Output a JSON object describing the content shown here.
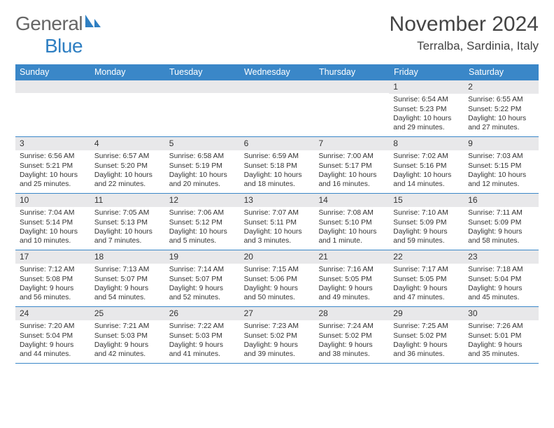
{
  "brand": {
    "part1": "General",
    "part2": "Blue"
  },
  "title": {
    "month_year": "November 2024",
    "location": "Terralba, Sardinia, Italy"
  },
  "colors": {
    "accent": "#3a87c8",
    "band": "#e8e8ea",
    "text": "#333333"
  },
  "days_of_week": [
    "Sunday",
    "Monday",
    "Tuesday",
    "Wednesday",
    "Thursday",
    "Friday",
    "Saturday"
  ],
  "weeks": [
    [
      {
        "blank": true
      },
      {
        "blank": true
      },
      {
        "blank": true
      },
      {
        "blank": true
      },
      {
        "blank": true
      },
      {
        "n": "1",
        "sr": "Sunrise: 6:54 AM",
        "ss": "Sunset: 5:23 PM",
        "dl1": "Daylight: 10 hours",
        "dl2": "and 29 minutes."
      },
      {
        "n": "2",
        "sr": "Sunrise: 6:55 AM",
        "ss": "Sunset: 5:22 PM",
        "dl1": "Daylight: 10 hours",
        "dl2": "and 27 minutes."
      }
    ],
    [
      {
        "n": "3",
        "sr": "Sunrise: 6:56 AM",
        "ss": "Sunset: 5:21 PM",
        "dl1": "Daylight: 10 hours",
        "dl2": "and 25 minutes."
      },
      {
        "n": "4",
        "sr": "Sunrise: 6:57 AM",
        "ss": "Sunset: 5:20 PM",
        "dl1": "Daylight: 10 hours",
        "dl2": "and 22 minutes."
      },
      {
        "n": "5",
        "sr": "Sunrise: 6:58 AM",
        "ss": "Sunset: 5:19 PM",
        "dl1": "Daylight: 10 hours",
        "dl2": "and 20 minutes."
      },
      {
        "n": "6",
        "sr": "Sunrise: 6:59 AM",
        "ss": "Sunset: 5:18 PM",
        "dl1": "Daylight: 10 hours",
        "dl2": "and 18 minutes."
      },
      {
        "n": "7",
        "sr": "Sunrise: 7:00 AM",
        "ss": "Sunset: 5:17 PM",
        "dl1": "Daylight: 10 hours",
        "dl2": "and 16 minutes."
      },
      {
        "n": "8",
        "sr": "Sunrise: 7:02 AM",
        "ss": "Sunset: 5:16 PM",
        "dl1": "Daylight: 10 hours",
        "dl2": "and 14 minutes."
      },
      {
        "n": "9",
        "sr": "Sunrise: 7:03 AM",
        "ss": "Sunset: 5:15 PM",
        "dl1": "Daylight: 10 hours",
        "dl2": "and 12 minutes."
      }
    ],
    [
      {
        "n": "10",
        "sr": "Sunrise: 7:04 AM",
        "ss": "Sunset: 5:14 PM",
        "dl1": "Daylight: 10 hours",
        "dl2": "and 10 minutes."
      },
      {
        "n": "11",
        "sr": "Sunrise: 7:05 AM",
        "ss": "Sunset: 5:13 PM",
        "dl1": "Daylight: 10 hours",
        "dl2": "and 7 minutes."
      },
      {
        "n": "12",
        "sr": "Sunrise: 7:06 AM",
        "ss": "Sunset: 5:12 PM",
        "dl1": "Daylight: 10 hours",
        "dl2": "and 5 minutes."
      },
      {
        "n": "13",
        "sr": "Sunrise: 7:07 AM",
        "ss": "Sunset: 5:11 PM",
        "dl1": "Daylight: 10 hours",
        "dl2": "and 3 minutes."
      },
      {
        "n": "14",
        "sr": "Sunrise: 7:08 AM",
        "ss": "Sunset: 5:10 PM",
        "dl1": "Daylight: 10 hours",
        "dl2": "and 1 minute."
      },
      {
        "n": "15",
        "sr": "Sunrise: 7:10 AM",
        "ss": "Sunset: 5:09 PM",
        "dl1": "Daylight: 9 hours",
        "dl2": "and 59 minutes."
      },
      {
        "n": "16",
        "sr": "Sunrise: 7:11 AM",
        "ss": "Sunset: 5:09 PM",
        "dl1": "Daylight: 9 hours",
        "dl2": "and 58 minutes."
      }
    ],
    [
      {
        "n": "17",
        "sr": "Sunrise: 7:12 AM",
        "ss": "Sunset: 5:08 PM",
        "dl1": "Daylight: 9 hours",
        "dl2": "and 56 minutes."
      },
      {
        "n": "18",
        "sr": "Sunrise: 7:13 AM",
        "ss": "Sunset: 5:07 PM",
        "dl1": "Daylight: 9 hours",
        "dl2": "and 54 minutes."
      },
      {
        "n": "19",
        "sr": "Sunrise: 7:14 AM",
        "ss": "Sunset: 5:07 PM",
        "dl1": "Daylight: 9 hours",
        "dl2": "and 52 minutes."
      },
      {
        "n": "20",
        "sr": "Sunrise: 7:15 AM",
        "ss": "Sunset: 5:06 PM",
        "dl1": "Daylight: 9 hours",
        "dl2": "and 50 minutes."
      },
      {
        "n": "21",
        "sr": "Sunrise: 7:16 AM",
        "ss": "Sunset: 5:05 PM",
        "dl1": "Daylight: 9 hours",
        "dl2": "and 49 minutes."
      },
      {
        "n": "22",
        "sr": "Sunrise: 7:17 AM",
        "ss": "Sunset: 5:05 PM",
        "dl1": "Daylight: 9 hours",
        "dl2": "and 47 minutes."
      },
      {
        "n": "23",
        "sr": "Sunrise: 7:18 AM",
        "ss": "Sunset: 5:04 PM",
        "dl1": "Daylight: 9 hours",
        "dl2": "and 45 minutes."
      }
    ],
    [
      {
        "n": "24",
        "sr": "Sunrise: 7:20 AM",
        "ss": "Sunset: 5:04 PM",
        "dl1": "Daylight: 9 hours",
        "dl2": "and 44 minutes."
      },
      {
        "n": "25",
        "sr": "Sunrise: 7:21 AM",
        "ss": "Sunset: 5:03 PM",
        "dl1": "Daylight: 9 hours",
        "dl2": "and 42 minutes."
      },
      {
        "n": "26",
        "sr": "Sunrise: 7:22 AM",
        "ss": "Sunset: 5:03 PM",
        "dl1": "Daylight: 9 hours",
        "dl2": "and 41 minutes."
      },
      {
        "n": "27",
        "sr": "Sunrise: 7:23 AM",
        "ss": "Sunset: 5:02 PM",
        "dl1": "Daylight: 9 hours",
        "dl2": "and 39 minutes."
      },
      {
        "n": "28",
        "sr": "Sunrise: 7:24 AM",
        "ss": "Sunset: 5:02 PM",
        "dl1": "Daylight: 9 hours",
        "dl2": "and 38 minutes."
      },
      {
        "n": "29",
        "sr": "Sunrise: 7:25 AM",
        "ss": "Sunset: 5:02 PM",
        "dl1": "Daylight: 9 hours",
        "dl2": "and 36 minutes."
      },
      {
        "n": "30",
        "sr": "Sunrise: 7:26 AM",
        "ss": "Sunset: 5:01 PM",
        "dl1": "Daylight: 9 hours",
        "dl2": "and 35 minutes."
      }
    ]
  ]
}
